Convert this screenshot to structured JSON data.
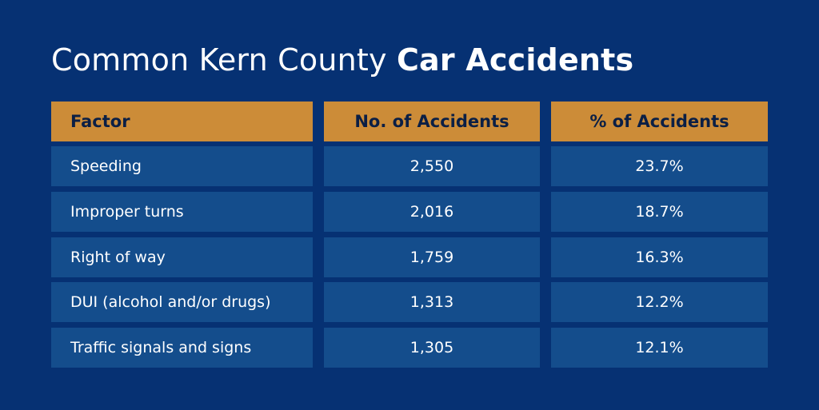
{
  "colors": {
    "background": "#063173",
    "header_fill": "#cc8c38",
    "header_text": "#0b1f45",
    "row_fill": "#144d8c",
    "text": "#ffffff"
  },
  "chart_data": {
    "type": "table",
    "title_light": "Common Kern County ",
    "title_bold": "Car Accidents",
    "columns": [
      "Factor",
      "No. of Accidents",
      "% of Accidents"
    ],
    "rows": [
      {
        "factor": "Speeding",
        "count": "2,550",
        "percent": "23.7%"
      },
      {
        "factor": "Improper turns",
        "count": "2,016",
        "percent": "18.7%"
      },
      {
        "factor": "Right of way",
        "count": "1,759",
        "percent": "16.3%"
      },
      {
        "factor": "DUI (alcohol and/or drugs)",
        "count": "1,313",
        "percent": "12.2%"
      },
      {
        "factor": "Traffic signals and signs",
        "count": "1,305",
        "percent": "12.1%"
      }
    ]
  }
}
